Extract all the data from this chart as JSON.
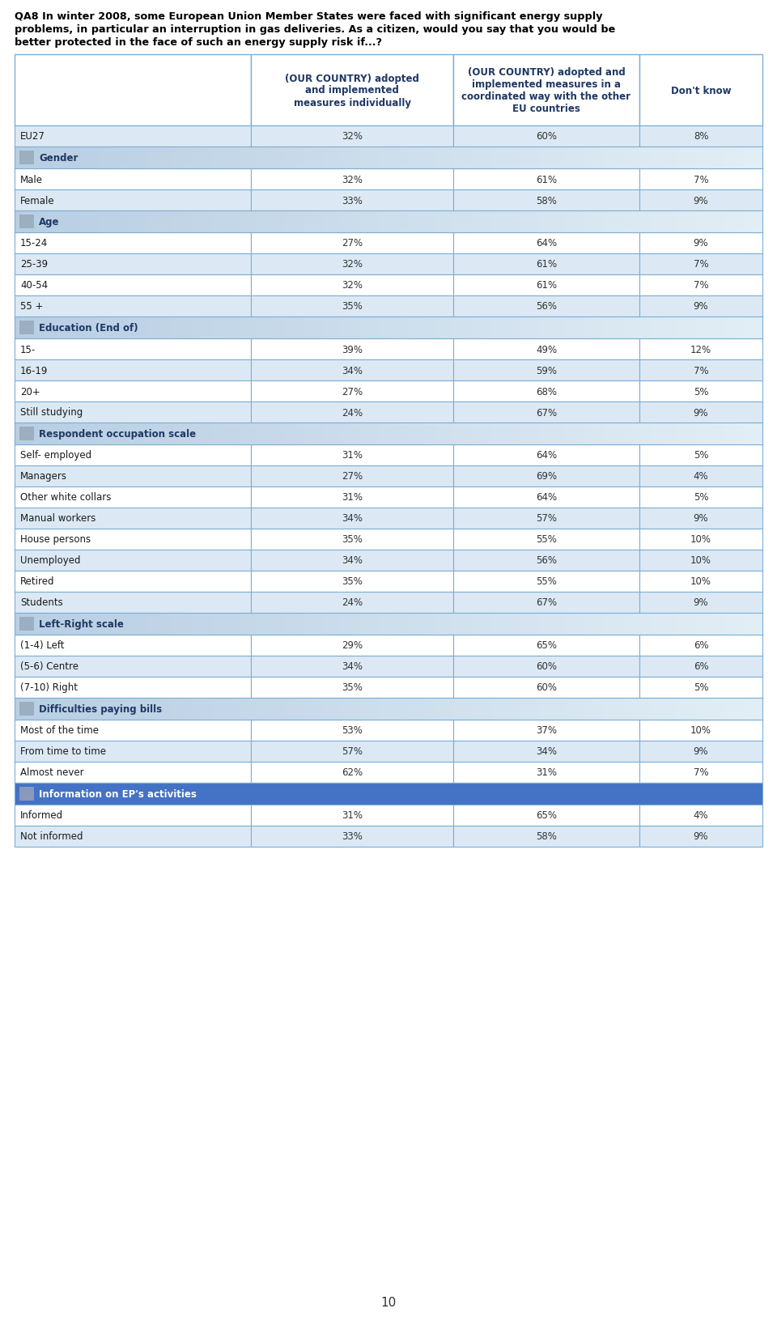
{
  "title_line1": "QA8 In winter 2008, some European Union Member States were faced with significant energy supply",
  "title_line2": "problems, in particular an interruption in gas deliveries. As a citizen, would you say that you would be",
  "title_line3": "better protected in the face of such an energy supply risk if...?",
  "col_headers": [
    "(OUR COUNTRY) adopted\nand implemented\nmeasures individually",
    "(OUR COUNTRY) adopted and\nimplemented measures in a\ncoordinated way with the other\nEU countries",
    "Don't know"
  ],
  "sections": [
    {
      "type": "data",
      "label": "EU27",
      "values": [
        "32%",
        "60%",
        "8%"
      ],
      "bg": "#dce9f4"
    },
    {
      "type": "header",
      "label": "Gender",
      "special": false
    },
    {
      "type": "data",
      "label": "Male",
      "values": [
        "32%",
        "61%",
        "7%"
      ],
      "bg": "#ffffff"
    },
    {
      "type": "data",
      "label": "Female",
      "values": [
        "33%",
        "58%",
        "9%"
      ],
      "bg": "#dce9f4"
    },
    {
      "type": "header",
      "label": "Age",
      "special": false
    },
    {
      "type": "data",
      "label": "15-24",
      "values": [
        "27%",
        "64%",
        "9%"
      ],
      "bg": "#ffffff"
    },
    {
      "type": "data",
      "label": "25-39",
      "values": [
        "32%",
        "61%",
        "7%"
      ],
      "bg": "#dce9f4"
    },
    {
      "type": "data",
      "label": "40-54",
      "values": [
        "32%",
        "61%",
        "7%"
      ],
      "bg": "#ffffff"
    },
    {
      "type": "data",
      "label": "55 +",
      "values": [
        "35%",
        "56%",
        "9%"
      ],
      "bg": "#dce9f4"
    },
    {
      "type": "header",
      "label": "Education (End of)",
      "special": false
    },
    {
      "type": "data",
      "label": "15-",
      "values": [
        "39%",
        "49%",
        "12%"
      ],
      "bg": "#ffffff"
    },
    {
      "type": "data",
      "label": "16-19",
      "values": [
        "34%",
        "59%",
        "7%"
      ],
      "bg": "#dce9f4"
    },
    {
      "type": "data",
      "label": "20+",
      "values": [
        "27%",
        "68%",
        "5%"
      ],
      "bg": "#ffffff"
    },
    {
      "type": "data",
      "label": "Still studying",
      "values": [
        "24%",
        "67%",
        "9%"
      ],
      "bg": "#dce9f4"
    },
    {
      "type": "header",
      "label": "Respondent occupation scale",
      "special": false
    },
    {
      "type": "data",
      "label": "Self- employed",
      "values": [
        "31%",
        "64%",
        "5%"
      ],
      "bg": "#ffffff"
    },
    {
      "type": "data",
      "label": "Managers",
      "values": [
        "27%",
        "69%",
        "4%"
      ],
      "bg": "#dce9f4"
    },
    {
      "type": "data",
      "label": "Other white collars",
      "values": [
        "31%",
        "64%",
        "5%"
      ],
      "bg": "#ffffff"
    },
    {
      "type": "data",
      "label": "Manual workers",
      "values": [
        "34%",
        "57%",
        "9%"
      ],
      "bg": "#dce9f4"
    },
    {
      "type": "data",
      "label": "House persons",
      "values": [
        "35%",
        "55%",
        "10%"
      ],
      "bg": "#ffffff"
    },
    {
      "type": "data",
      "label": "Unemployed",
      "values": [
        "34%",
        "56%",
        "10%"
      ],
      "bg": "#dce9f4"
    },
    {
      "type": "data",
      "label": "Retired",
      "values": [
        "35%",
        "55%",
        "10%"
      ],
      "bg": "#ffffff"
    },
    {
      "type": "data",
      "label": "Students",
      "values": [
        "24%",
        "67%",
        "9%"
      ],
      "bg": "#dce9f4"
    },
    {
      "type": "header",
      "label": "Left-Right scale",
      "special": false
    },
    {
      "type": "data",
      "label": "(1-4) Left",
      "values": [
        "29%",
        "65%",
        "6%"
      ],
      "bg": "#ffffff"
    },
    {
      "type": "data",
      "label": "(5-6) Centre",
      "values": [
        "34%",
        "60%",
        "6%"
      ],
      "bg": "#dce9f4"
    },
    {
      "type": "data",
      "label": "(7-10) Right",
      "values": [
        "35%",
        "60%",
        "5%"
      ],
      "bg": "#ffffff"
    },
    {
      "type": "header",
      "label": "Difficulties paying bills",
      "special": false
    },
    {
      "type": "data",
      "label": "Most of the time",
      "values": [
        "53%",
        "37%",
        "10%"
      ],
      "bg": "#ffffff"
    },
    {
      "type": "data",
      "label": "From time to time",
      "values": [
        "57%",
        "34%",
        "9%"
      ],
      "bg": "#dce9f4"
    },
    {
      "type": "data",
      "label": "Almost never",
      "values": [
        "62%",
        "31%",
        "7%"
      ],
      "bg": "#ffffff"
    },
    {
      "type": "header",
      "label": "Information on EP's activities",
      "special": true
    },
    {
      "type": "data",
      "label": "Informed",
      "values": [
        "31%",
        "65%",
        "4%"
      ],
      "bg": "#ffffff"
    },
    {
      "type": "data",
      "label": "Not informed",
      "values": [
        "33%",
        "58%",
        "9%"
      ],
      "bg": "#dce9f4"
    }
  ],
  "border_color": "#7bafd4",
  "header_text_color": "#1f3864",
  "page_bg": "#ffffff"
}
